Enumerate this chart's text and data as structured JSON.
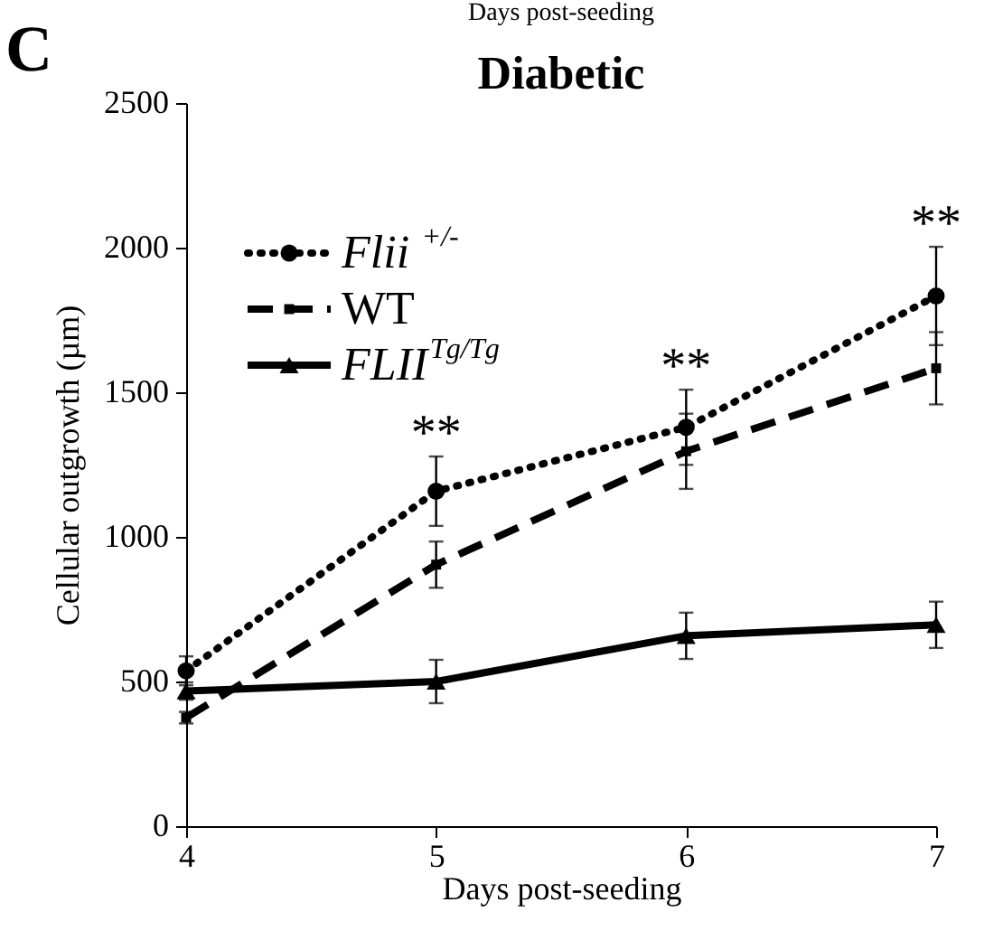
{
  "chart_data": {
    "type": "line",
    "title": "Diabetic",
    "xlabel": "Days post-seeding",
    "ylabel": "Cellular outgrowth (µm)",
    "x": [
      4,
      5,
      6,
      7
    ],
    "xlim": [
      4,
      7
    ],
    "xticks": [
      4,
      5,
      6,
      7
    ],
    "ylim": [
      0,
      2500
    ],
    "yticks": [
      0,
      500,
      1000,
      1500,
      2000,
      2500
    ],
    "grid": false,
    "legend": "top left",
    "series": [
      {
        "name": "Flii $^{+/-}$",
        "color": "#000000",
        "marker": "circle",
        "line_style": "dotted",
        "values": [
          537,
          1158,
          1379,
          1833
        ],
        "errors": [
          50,
          120,
          130,
          170
        ]
      },
      {
        "name": "WT",
        "color": "#000000",
        "marker": "square",
        "line_style": "dashed",
        "values": [
          375,
          904,
          1296,
          1583
        ],
        "errors": [
          20,
          80,
          130,
          125
        ]
      },
      {
        "name": "FLII$^{Tg/Tg}$",
        "color": "#000000",
        "marker": "triangle",
        "line_style": "solid",
        "values": [
          467,
          500,
          658,
          696
        ],
        "errors": [
          30,
          75,
          80,
          80
        ]
      }
    ],
    "annotations": [
      "C",
      "Days post-seeding",
      "**",
      "**",
      "**"
    ]
  }
}
